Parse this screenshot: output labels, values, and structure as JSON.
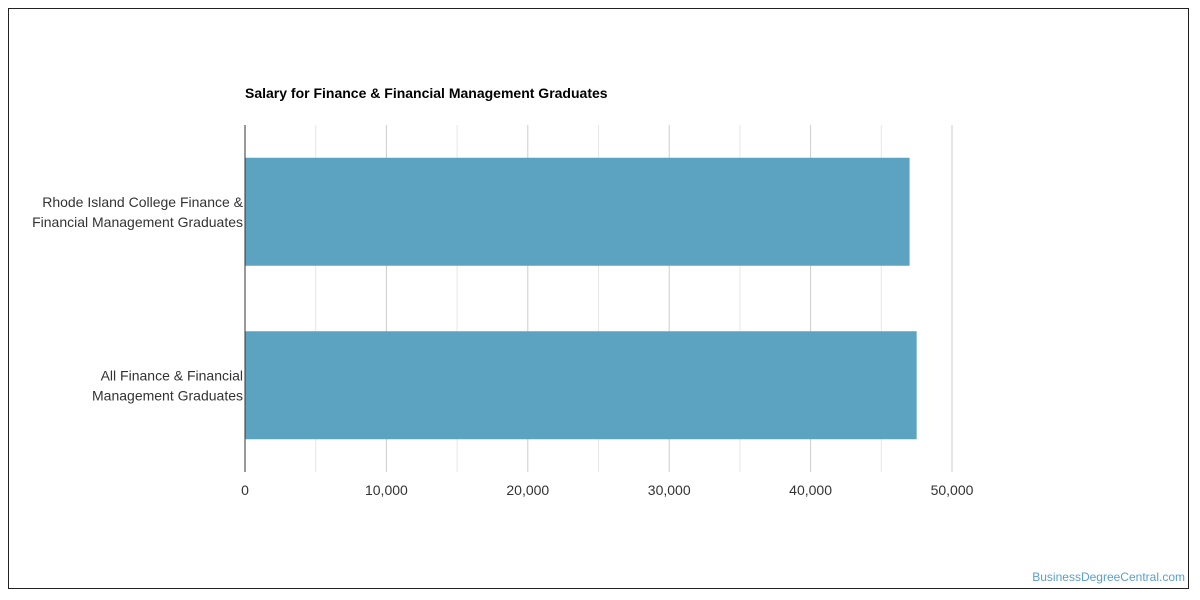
{
  "chart_data": {
    "type": "bar",
    "orientation": "horizontal",
    "title": "Salary for Finance & Financial Management Graduates",
    "categories": [
      [
        "Rhode Island College Finance &",
        "Financial Management Graduates"
      ],
      [
        "All Finance & Financial",
        "Management Graduates"
      ]
    ],
    "values": [
      47000,
      47500
    ],
    "xlim": [
      0,
      50000
    ],
    "xticks": [
      0,
      10000,
      20000,
      30000,
      40000,
      50000
    ],
    "xtick_labels": [
      "0",
      "10,000",
      "20,000",
      "30,000",
      "40,000",
      "50,000"
    ],
    "grid": true,
    "bar_color": "#5ba3c0"
  },
  "watermark": "BusinessDegreeCentral.com"
}
